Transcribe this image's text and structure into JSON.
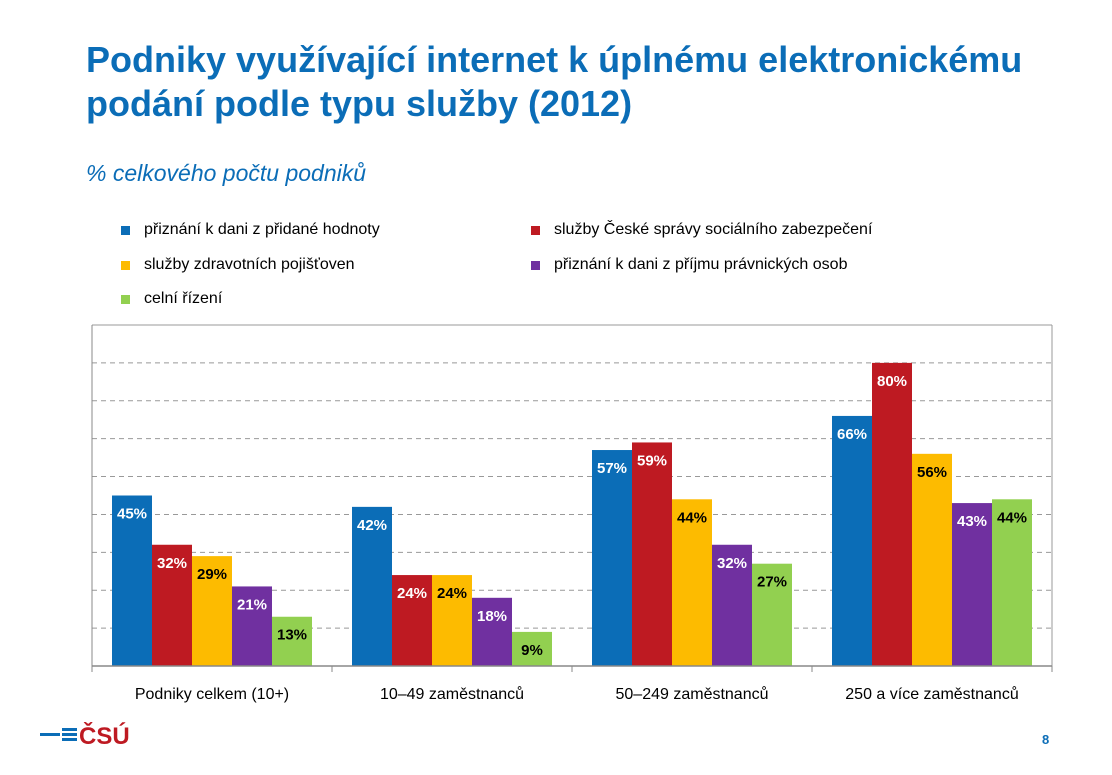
{
  "chart_data": {
    "type": "bar",
    "title": "Podniky využívající internet k úplnému elektronickému podání podle typu služby (2012)",
    "subtitle": "% celkového počtu podniků",
    "categories": [
      "Podniky celkem (10+)",
      "10–49 zaměstnanců",
      "50–249 zaměstnanců",
      "250 a více zaměstnanců"
    ],
    "series": [
      {
        "name": "přiznání k dani z přidané hodnoty",
        "color": "#0B6DB7",
        "label_color": "#ffffff",
        "values": [
          45,
          42,
          57,
          66
        ]
      },
      {
        "name": "služby České správy sociálního zabezpečení",
        "color": "#BE1A22",
        "label_color": "#ffffff",
        "values": [
          32,
          24,
          59,
          80
        ]
      },
      {
        "name": "služby zdravotních pojišťoven",
        "color": "#FDBB00",
        "label_color": "#000000",
        "values": [
          29,
          24,
          44,
          56
        ]
      },
      {
        "name": "přiznání k dani z příjmu právnických osob",
        "color": "#7030A0",
        "label_color": "#ffffff",
        "values": [
          21,
          18,
          32,
          43
        ]
      },
      {
        "name": "celní řízení",
        "color": "#92D050",
        "label_color": "#000000",
        "values": [
          13,
          9,
          27,
          44
        ]
      }
    ],
    "value_suffix": "%",
    "ylim": [
      0,
      90
    ],
    "grid": true,
    "grid_step": 10,
    "legend": "top"
  },
  "logo": "ČSÚ",
  "page_number": "8"
}
